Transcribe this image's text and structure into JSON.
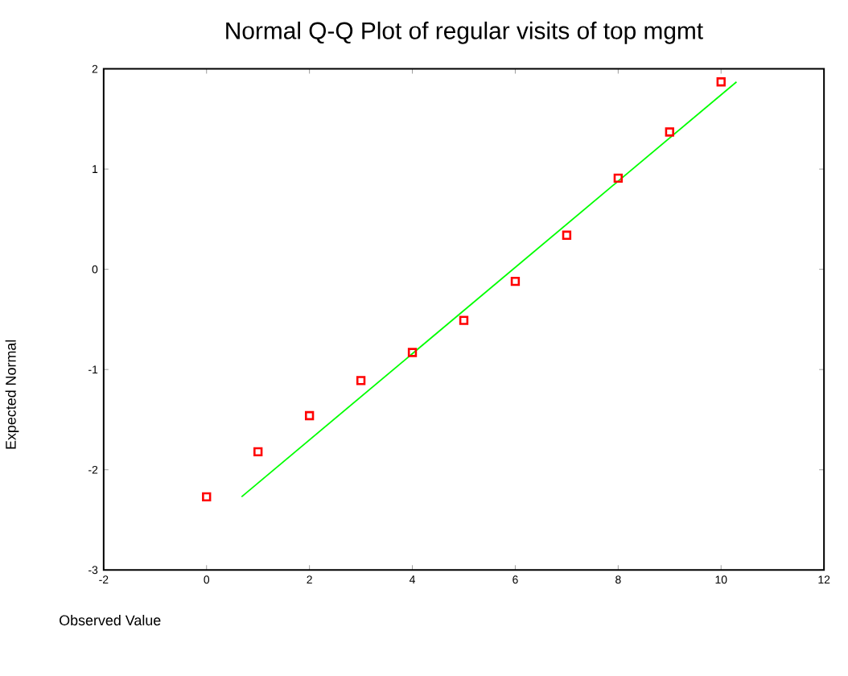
{
  "chart_data": {
    "type": "scatter",
    "title": "Normal Q-Q Plot of regular visits of top mgmt",
    "xlabel": "Observed Value",
    "ylabel": "Expected Normal",
    "xlim": [
      -2,
      12
    ],
    "xticks": [
      -2,
      0,
      2,
      4,
      6,
      8,
      10,
      12
    ],
    "ylim": [
      -3,
      2
    ],
    "yticks": [
      -3,
      -2,
      -1,
      0,
      1,
      2
    ],
    "grid": false,
    "marker": "square",
    "series": [
      {
        "color": "#ff0000",
        "x": [
          0,
          1,
          2,
          3,
          4,
          5,
          6,
          7,
          8,
          9,
          10
        ],
        "values": [
          -2.27,
          -1.82,
          -1.46,
          -1.11,
          -0.83,
          -0.51,
          -0.12,
          0.34,
          0.91,
          1.37,
          1.87
        ]
      },
      {
        "type": "line",
        "color": "#00ff00",
        "marker": "none",
        "x": [
          0.68,
          10.3
        ],
        "values": [
          -2.27,
          1.87
        ]
      }
    ]
  }
}
